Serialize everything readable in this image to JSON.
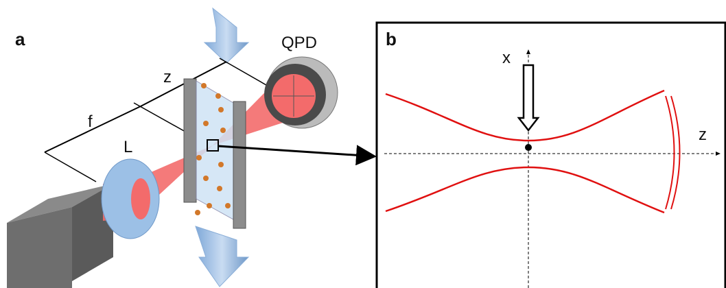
{
  "panel_a": {
    "label": "a",
    "detector": "QPD",
    "distance_z": "z",
    "distance_f": "f",
    "lens": "L"
  },
  "panel_b": {
    "label": "b",
    "axis_x": "x",
    "axis_z": "z"
  }
}
